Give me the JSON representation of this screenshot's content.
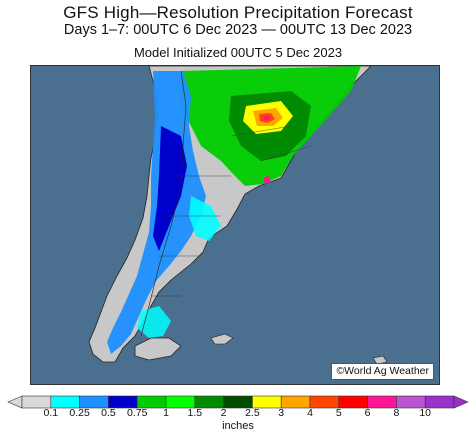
{
  "title": {
    "line1": "GFS High—Resolution Precipitation Forecast",
    "line2": "Days 1–7: 00UTC 6 Dec 2023 — 00UTC 13 Dec 2023",
    "line3": "Model Initialized 00UTC 5 Dec 2023"
  },
  "credit": "©World Ag Weather",
  "legend": {
    "units": "inches",
    "labels": [
      "0.1",
      "0.25",
      "0.5",
      "0.75",
      "1",
      "1.5",
      "2",
      "2.5",
      "3",
      "4",
      "5",
      "6",
      "8",
      "10"
    ],
    "colors": [
      "#d9d9d9",
      "#00ffff",
      "#1e90ff",
      "#0000cd",
      "#00cd00",
      "#00ff00",
      "#008b00",
      "#004d00",
      "#ffff00",
      "#ffa500",
      "#ff4500",
      "#ff0000",
      "#ff1493",
      "#ba55d3",
      "#9932cc"
    ]
  },
  "map": {
    "ocean_color": "#4a6f8f",
    "land_color": "#c8c8c8",
    "region": "Southern South America"
  }
}
